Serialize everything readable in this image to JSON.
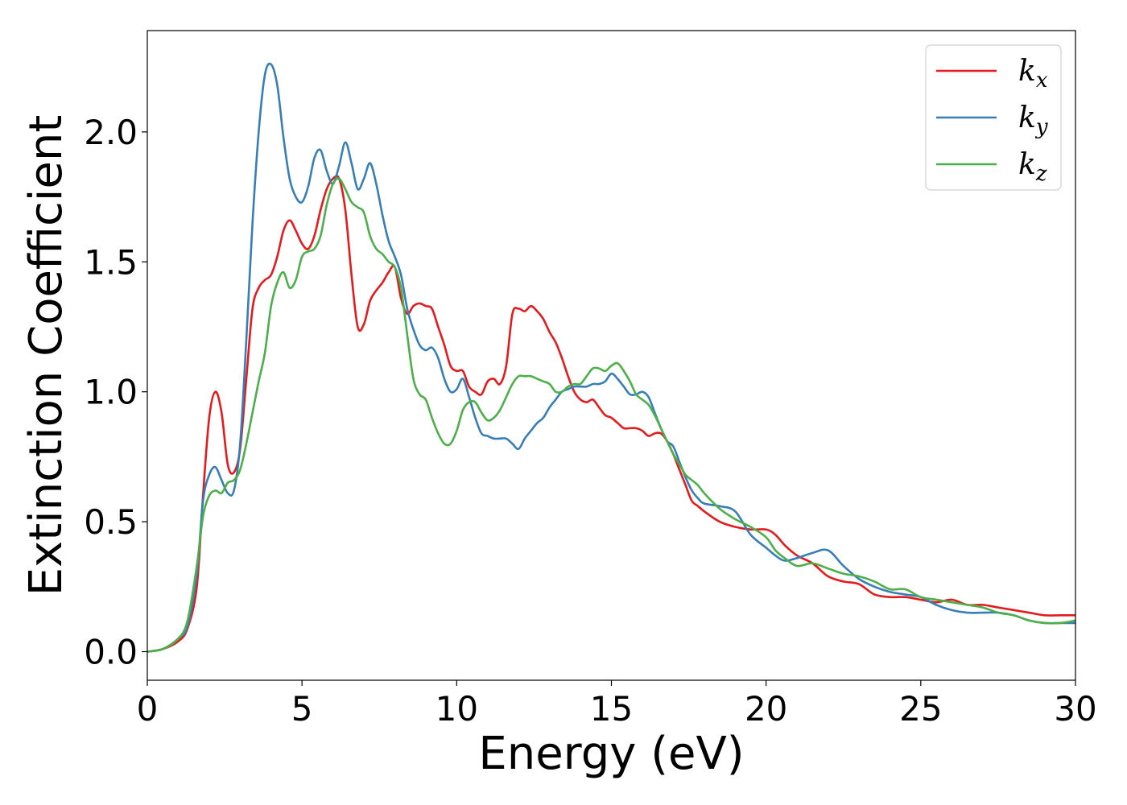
{
  "chart_data": {
    "type": "line",
    "xlabel": "Energy (eV)",
    "ylabel": "Extinction Coefficient",
    "xlim": [
      0,
      30
    ],
    "ylim": [
      -0.11,
      2.39
    ],
    "x_ticks": [
      "0",
      "5",
      "10",
      "15",
      "20",
      "25",
      "30"
    ],
    "y_ticks": [
      "0.0",
      "0.5",
      "1.0",
      "1.5",
      "2.0"
    ],
    "x_tick_values": [
      0,
      5,
      10,
      15,
      20,
      25,
      30
    ],
    "y_tick_values": [
      0,
      0.5,
      1.0,
      1.5,
      2.0
    ],
    "grid": false,
    "legend_position": "top-right",
    "series": [
      {
        "name": "k",
        "subscript": "x",
        "color": "#e41a1c",
        "x": [
          0,
          0.5,
          1.0,
          1.3,
          1.6,
          1.8,
          2.0,
          2.2,
          2.4,
          2.6,
          2.8,
          3.0,
          3.2,
          3.4,
          3.6,
          3.8,
          4.0,
          4.2,
          4.4,
          4.6,
          4.8,
          5.0,
          5.2,
          5.4,
          5.6,
          5.8,
          6.0,
          6.2,
          6.4,
          6.6,
          6.8,
          7.0,
          7.2,
          7.4,
          7.6,
          7.8,
          8.0,
          8.2,
          8.4,
          8.6,
          8.8,
          9.0,
          9.2,
          9.4,
          9.6,
          9.8,
          10.0,
          10.2,
          10.4,
          10.6,
          10.8,
          11.0,
          11.2,
          11.4,
          11.6,
          11.8,
          12.0,
          12.2,
          12.4,
          12.6,
          12.8,
          13.0,
          13.2,
          13.4,
          13.6,
          13.8,
          14.0,
          14.2,
          14.4,
          14.6,
          14.8,
          15.0,
          15.2,
          15.4,
          15.6,
          15.8,
          16.0,
          16.2,
          16.4,
          16.6,
          16.8,
          17.0,
          17.2,
          17.4,
          17.6,
          17.8,
          18.0,
          18.5,
          19.0,
          19.5,
          20.0,
          20.3,
          20.6,
          21.0,
          21.5,
          22.0,
          22.5,
          23.0,
          23.5,
          24.0,
          24.5,
          25.0,
          25.5,
          26.0,
          26.5,
          27.0,
          27.5,
          28.0,
          28.5,
          29.0,
          29.5,
          30.0
        ],
        "y": [
          0.0,
          0.01,
          0.04,
          0.09,
          0.25,
          0.6,
          0.9,
          1.0,
          0.92,
          0.72,
          0.69,
          0.78,
          1.05,
          1.32,
          1.4,
          1.43,
          1.45,
          1.52,
          1.62,
          1.66,
          1.62,
          1.57,
          1.55,
          1.6,
          1.7,
          1.78,
          1.82,
          1.82,
          1.7,
          1.45,
          1.25,
          1.26,
          1.35,
          1.39,
          1.42,
          1.46,
          1.48,
          1.36,
          1.3,
          1.33,
          1.34,
          1.33,
          1.32,
          1.25,
          1.18,
          1.1,
          1.08,
          1.08,
          1.02,
          1.0,
          0.99,
          1.04,
          1.05,
          1.03,
          1.1,
          1.3,
          1.32,
          1.31,
          1.33,
          1.31,
          1.28,
          1.23,
          1.19,
          1.13,
          1.06,
          1.0,
          0.97,
          0.96,
          0.97,
          0.94,
          0.91,
          0.9,
          0.88,
          0.86,
          0.86,
          0.86,
          0.85,
          0.83,
          0.84,
          0.84,
          0.81,
          0.76,
          0.7,
          0.64,
          0.58,
          0.56,
          0.54,
          0.5,
          0.48,
          0.47,
          0.47,
          0.45,
          0.41,
          0.37,
          0.34,
          0.29,
          0.27,
          0.26,
          0.22,
          0.21,
          0.21,
          0.2,
          0.19,
          0.2,
          0.18,
          0.18,
          0.17,
          0.16,
          0.15,
          0.14,
          0.14,
          0.14
        ]
      },
      {
        "name": "k",
        "subscript": "y",
        "color": "#377eb8",
        "x": [
          0,
          0.5,
          1.0,
          1.3,
          1.6,
          1.8,
          2.0,
          2.2,
          2.4,
          2.6,
          2.8,
          3.0,
          3.2,
          3.4,
          3.6,
          3.8,
          4.0,
          4.2,
          4.4,
          4.6,
          4.8,
          5.0,
          5.2,
          5.4,
          5.6,
          5.8,
          6.0,
          6.2,
          6.4,
          6.6,
          6.8,
          7.0,
          7.2,
          7.4,
          7.6,
          7.8,
          8.0,
          8.2,
          8.4,
          8.6,
          8.8,
          9.0,
          9.2,
          9.4,
          9.6,
          9.8,
          10.0,
          10.2,
          10.4,
          10.6,
          10.8,
          11.0,
          11.2,
          11.4,
          11.6,
          11.8,
          12.0,
          12.2,
          12.4,
          12.6,
          12.8,
          13.0,
          13.2,
          13.4,
          13.6,
          13.8,
          14.0,
          14.2,
          14.4,
          14.6,
          14.8,
          15.0,
          15.2,
          15.4,
          15.6,
          15.8,
          16.0,
          16.2,
          16.4,
          16.6,
          16.8,
          17.0,
          17.2,
          17.4,
          17.6,
          17.8,
          18.0,
          18.5,
          19.0,
          19.5,
          20.0,
          20.3,
          20.6,
          21.0,
          21.5,
          22.0,
          22.5,
          23.0,
          23.5,
          24.0,
          24.5,
          25.0,
          25.5,
          26.0,
          26.5,
          27.0,
          27.5,
          28.0,
          28.5,
          29.0,
          29.5,
          30.0
        ],
        "y": [
          0.0,
          0.01,
          0.05,
          0.1,
          0.3,
          0.58,
          0.68,
          0.71,
          0.66,
          0.61,
          0.62,
          0.8,
          1.2,
          1.65,
          2.0,
          2.22,
          2.26,
          2.18,
          1.98,
          1.82,
          1.75,
          1.73,
          1.79,
          1.9,
          1.93,
          1.85,
          1.8,
          1.87,
          1.96,
          1.88,
          1.78,
          1.82,
          1.88,
          1.8,
          1.68,
          1.58,
          1.52,
          1.45,
          1.32,
          1.24,
          1.18,
          1.16,
          1.17,
          1.13,
          1.05,
          1.0,
          1.01,
          1.05,
          0.98,
          0.9,
          0.84,
          0.83,
          0.82,
          0.82,
          0.82,
          0.8,
          0.78,
          0.82,
          0.85,
          0.88,
          0.9,
          0.94,
          0.97,
          1.0,
          1.01,
          1.02,
          1.02,
          1.02,
          1.03,
          1.03,
          1.04,
          1.07,
          1.05,
          1.02,
          0.99,
          0.99,
          1.0,
          0.98,
          0.92,
          0.86,
          0.81,
          0.79,
          0.73,
          0.67,
          0.62,
          0.59,
          0.57,
          0.56,
          0.54,
          0.45,
          0.4,
          0.37,
          0.35,
          0.36,
          0.38,
          0.39,
          0.33,
          0.28,
          0.25,
          0.23,
          0.22,
          0.21,
          0.18,
          0.16,
          0.15,
          0.15,
          0.15,
          0.14,
          0.12,
          0.11,
          0.11,
          0.11
        ]
      },
      {
        "name": "k",
        "subscript": "z",
        "color": "#4daf4a",
        "x": [
          0,
          0.5,
          1.0,
          1.3,
          1.6,
          1.8,
          2.0,
          2.2,
          2.4,
          2.6,
          2.8,
          3.0,
          3.2,
          3.4,
          3.6,
          3.8,
          4.0,
          4.2,
          4.4,
          4.6,
          4.8,
          5.0,
          5.2,
          5.4,
          5.6,
          5.8,
          6.0,
          6.2,
          6.4,
          6.6,
          6.8,
          7.0,
          7.2,
          7.4,
          7.6,
          7.8,
          8.0,
          8.2,
          8.4,
          8.6,
          8.8,
          9.0,
          9.2,
          9.4,
          9.6,
          9.8,
          10.0,
          10.2,
          10.4,
          10.6,
          10.8,
          11.0,
          11.2,
          11.4,
          11.6,
          11.8,
          12.0,
          12.2,
          12.4,
          12.6,
          12.8,
          13.0,
          13.2,
          13.4,
          13.6,
          13.8,
          14.0,
          14.2,
          14.4,
          14.6,
          14.8,
          15.0,
          15.2,
          15.4,
          15.6,
          15.8,
          16.0,
          16.2,
          16.4,
          16.6,
          16.8,
          17.0,
          17.2,
          17.4,
          17.6,
          17.8,
          18.0,
          18.5,
          19.0,
          19.5,
          20.0,
          20.3,
          20.6,
          21.0,
          21.5,
          22.0,
          22.5,
          23.0,
          23.5,
          24.0,
          24.5,
          25.0,
          25.5,
          26.0,
          26.5,
          27.0,
          27.5,
          28.0,
          28.5,
          29.0,
          29.5,
          30.0
        ],
        "y": [
          0.0,
          0.01,
          0.05,
          0.12,
          0.33,
          0.52,
          0.6,
          0.62,
          0.61,
          0.65,
          0.66,
          0.7,
          0.8,
          0.92,
          1.04,
          1.15,
          1.33,
          1.42,
          1.46,
          1.4,
          1.43,
          1.52,
          1.54,
          1.55,
          1.6,
          1.72,
          1.8,
          1.82,
          1.78,
          1.73,
          1.71,
          1.69,
          1.6,
          1.55,
          1.53,
          1.5,
          1.48,
          1.4,
          1.22,
          1.05,
          0.99,
          0.97,
          0.9,
          0.84,
          0.8,
          0.8,
          0.85,
          0.93,
          0.96,
          0.96,
          0.92,
          0.89,
          0.9,
          0.93,
          0.98,
          1.03,
          1.06,
          1.06,
          1.06,
          1.05,
          1.04,
          1.03,
          1.0,
          1.0,
          1.02,
          1.03,
          1.03,
          1.06,
          1.09,
          1.09,
          1.08,
          1.1,
          1.11,
          1.08,
          1.04,
          0.99,
          0.97,
          0.95,
          0.91,
          0.86,
          0.81,
          0.76,
          0.72,
          0.68,
          0.66,
          0.64,
          0.61,
          0.55,
          0.51,
          0.48,
          0.44,
          0.39,
          0.36,
          0.33,
          0.34,
          0.32,
          0.3,
          0.29,
          0.27,
          0.24,
          0.24,
          0.21,
          0.2,
          0.19,
          0.18,
          0.17,
          0.15,
          0.14,
          0.12,
          0.11,
          0.11,
          0.12
        ]
      }
    ]
  }
}
